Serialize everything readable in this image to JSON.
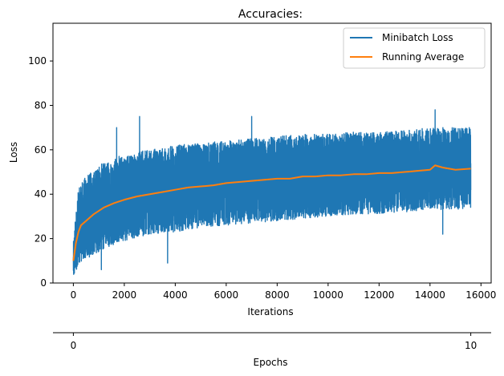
{
  "chart_data": {
    "type": "line",
    "title": "Accuracies:",
    "xlabel": "Iterations",
    "ylabel": "Loss",
    "xlim": [
      -800,
      16400
    ],
    "ylim": [
      0,
      117
    ],
    "x_ticks": [
      0,
      2000,
      4000,
      6000,
      8000,
      10000,
      12000,
      14000,
      16000
    ],
    "y_ticks": [
      0,
      20,
      40,
      60,
      80,
      100
    ],
    "grid": false,
    "legend_position": "top-right",
    "secondary_x_axis": {
      "label": "Epochs",
      "ticks": [
        0,
        10
      ],
      "iterations_per_tick": [
        0,
        15600
      ]
    },
    "series": [
      {
        "name": "Minibatch Loss",
        "color": "#1f77b4",
        "x_end": 15600,
        "envelope": {
          "x": [
            0,
            100,
            200,
            400,
            700,
            1000,
            1500,
            2000,
            3000,
            4000,
            5000,
            6000,
            7000,
            8000,
            9000,
            10000,
            11000,
            12000,
            13000,
            14000,
            15000,
            15600
          ],
          "low": [
            0,
            5,
            9,
            10,
            12,
            14,
            17,
            19,
            22,
            23,
            25,
            26,
            27,
            28,
            29,
            30,
            31,
            31,
            32,
            33,
            33,
            34
          ],
          "high": [
            18,
            32,
            42,
            47,
            50,
            53,
            56,
            58,
            60,
            62,
            63,
            64,
            65,
            66,
            67,
            67,
            68,
            68,
            69,
            70,
            70,
            70
          ]
        },
        "spikes": [
          [
            1100,
            6
          ],
          [
            2600,
            75
          ],
          [
            3700,
            9
          ],
          [
            7000,
            75
          ],
          [
            14200,
            78
          ],
          [
            14500,
            22
          ],
          [
            1700,
            70
          ]
        ]
      },
      {
        "name": "Running Average",
        "color": "#ff7f0e",
        "x": [
          0,
          100,
          200,
          300,
          500,
          800,
          1200,
          1600,
          2000,
          2500,
          3000,
          3500,
          4000,
          4500,
          5000,
          5500,
          6000,
          6500,
          7000,
          7500,
          8000,
          8500,
          9000,
          9500,
          10000,
          10500,
          11000,
          11500,
          12000,
          12500,
          13000,
          13500,
          14000,
          14200,
          14500,
          15000,
          15600
        ],
        "values": [
          10,
          18,
          23,
          26,
          28,
          31,
          34,
          36,
          37.5,
          39,
          40,
          41,
          42,
          43,
          43.5,
          44,
          45,
          45.5,
          46,
          46.5,
          47,
          47,
          48,
          48,
          48.5,
          48.5,
          49,
          49,
          49.5,
          49.5,
          50,
          50.5,
          51,
          53,
          52,
          51,
          51.5
        ]
      }
    ]
  }
}
